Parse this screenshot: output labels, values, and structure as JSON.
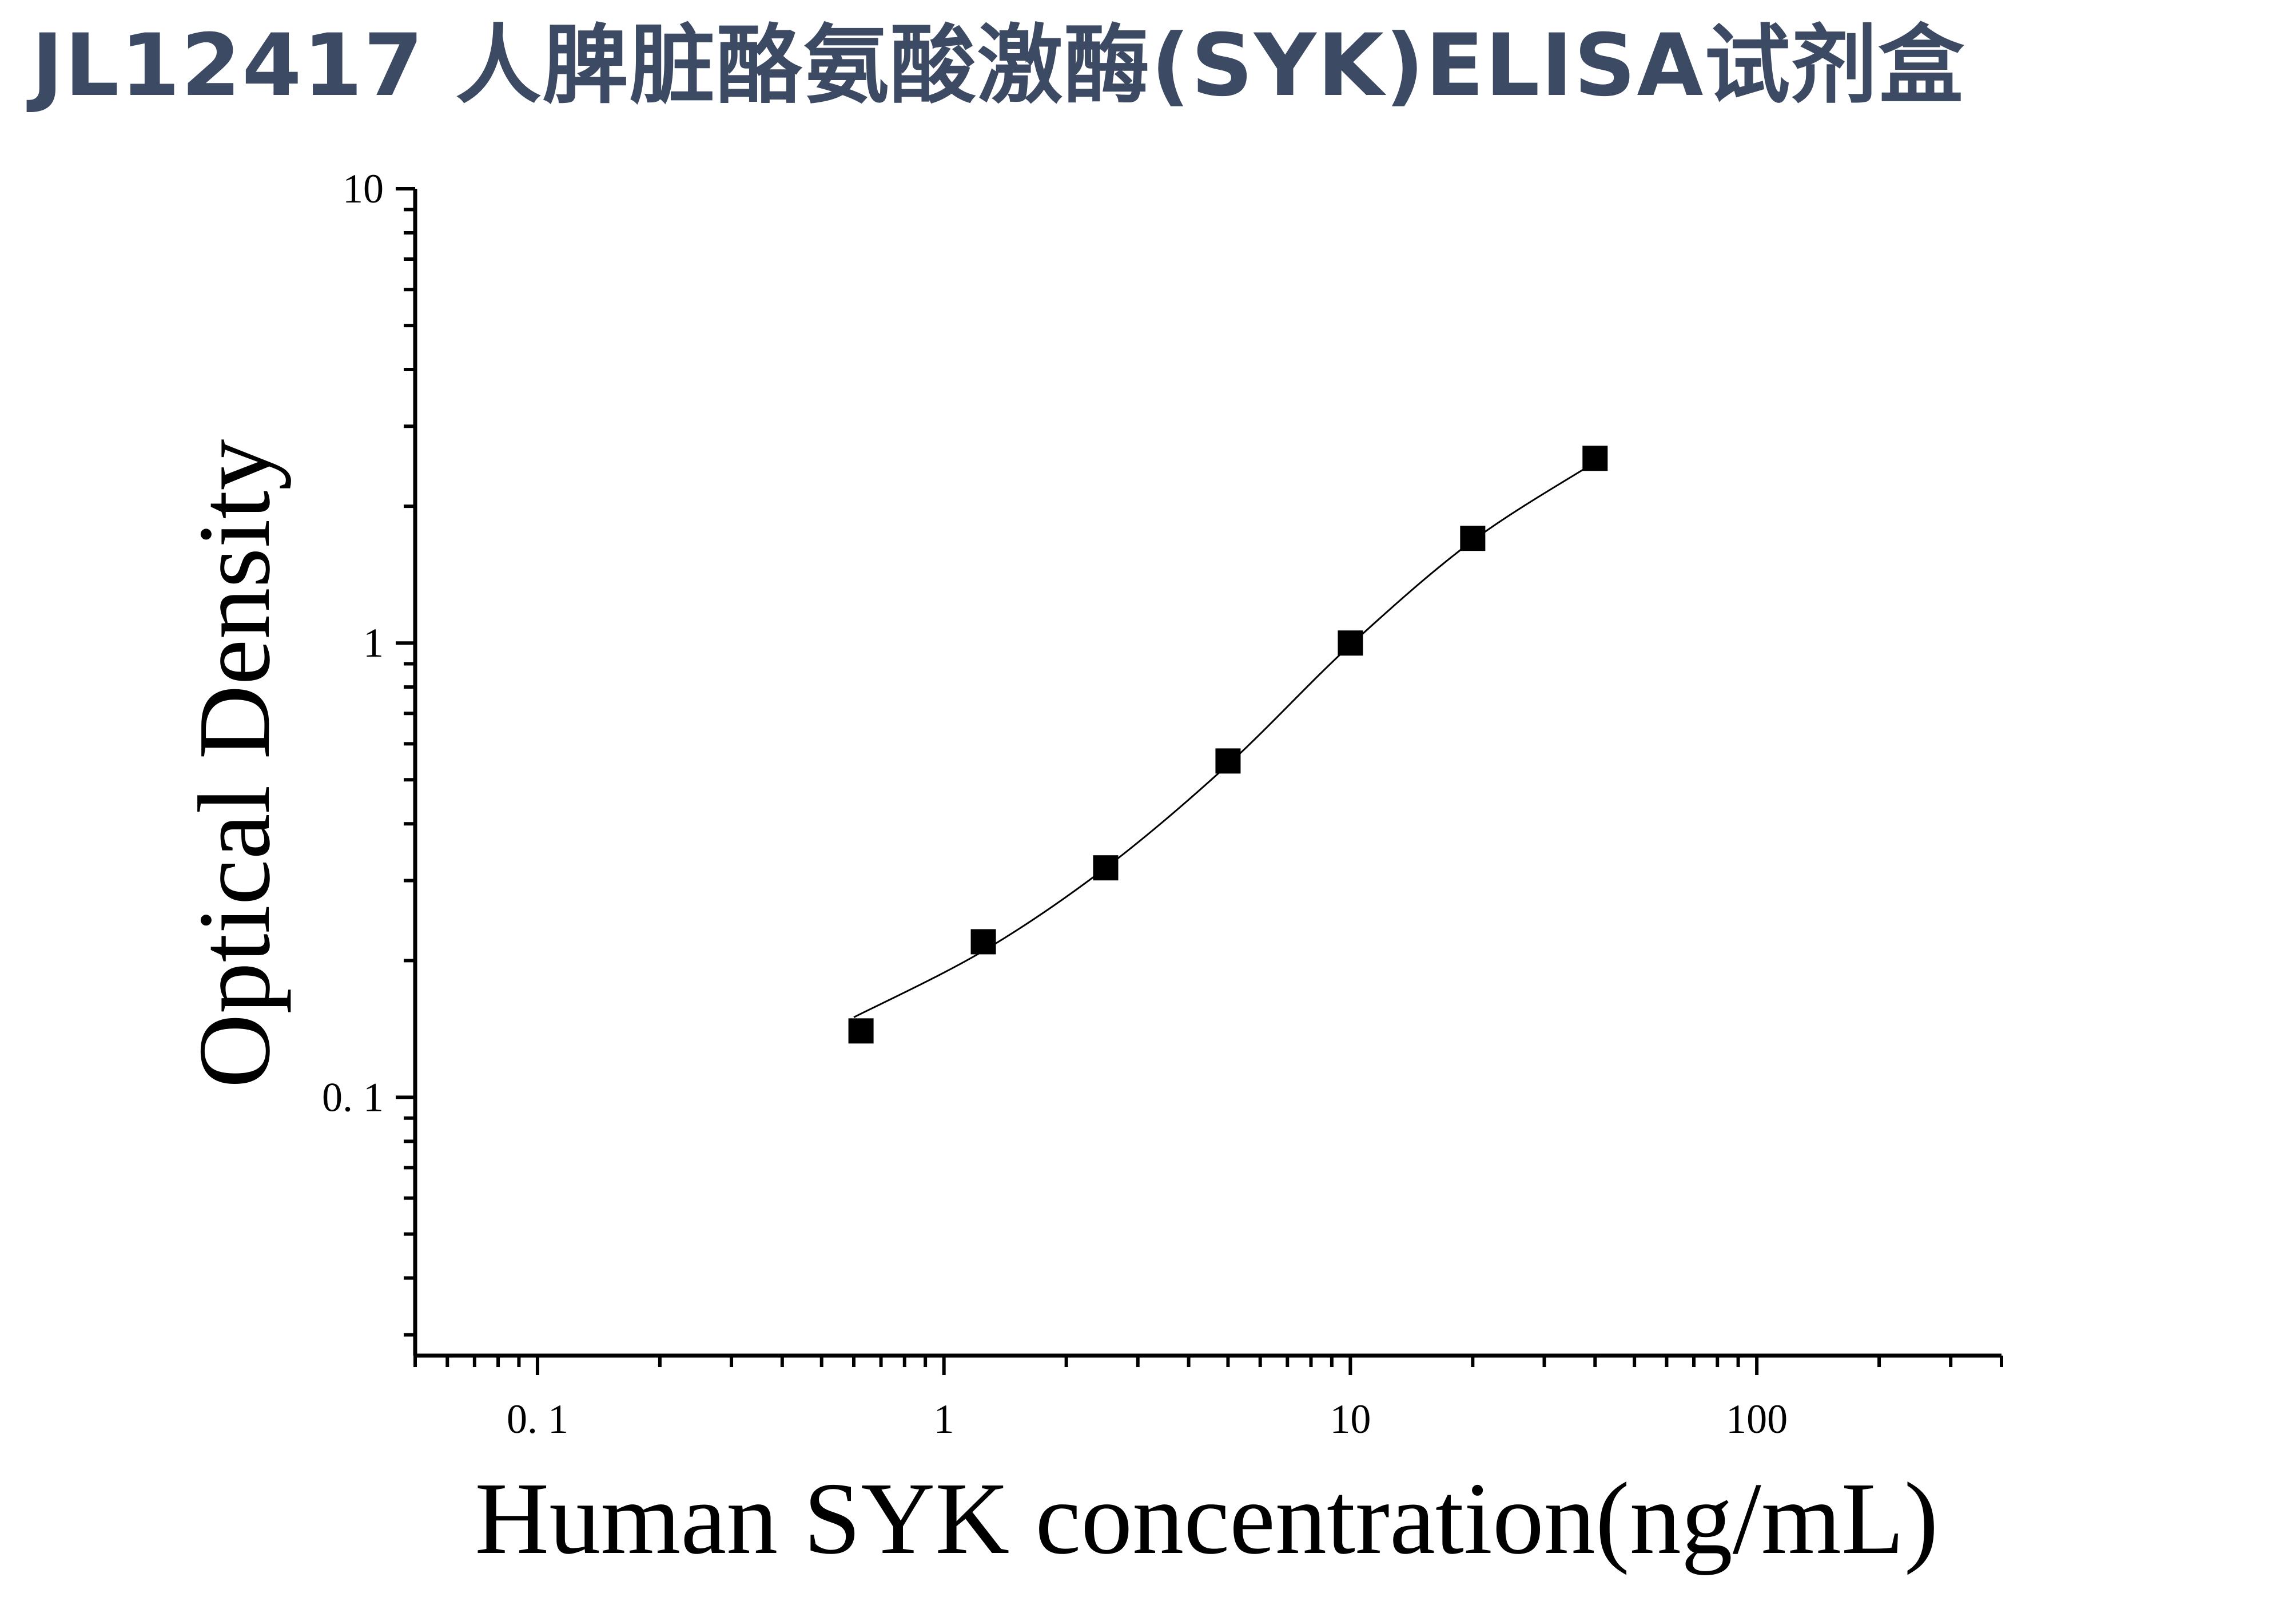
{
  "title": "JL12417 人脾脏酪氨酸激酶(SYK)ELISA试剂盒",
  "chart_data": {
    "type": "scatter",
    "xlabel": "Human SYK concentration(ng/mL)",
    "ylabel": "Optical Density",
    "x_scale": "log",
    "y_scale": "log",
    "xlim": [
      0.05,
      400
    ],
    "ylim": [
      0.027,
      10
    ],
    "x_ticks": [
      {
        "value": 0.1,
        "label": "0. 1"
      },
      {
        "value": 1,
        "label": "1"
      },
      {
        "value": 10,
        "label": "10"
      },
      {
        "value": 100,
        "label": "100"
      }
    ],
    "y_ticks": [
      {
        "value": 0.1,
        "label": "0. 1"
      },
      {
        "value": 1,
        "label": "1"
      },
      {
        "value": 10,
        "label": "10"
      }
    ],
    "series": [
      {
        "marker": "square",
        "color": "#000000",
        "x": [
          0.625,
          1.25,
          2.5,
          5,
          10,
          20,
          40
        ],
        "y": [
          0.14,
          0.22,
          0.32,
          0.55,
          1.0,
          1.7,
          2.55
        ]
      }
    ],
    "fit_curve": {
      "color": "#000000",
      "x": [
        0.6,
        1.25,
        2.5,
        5,
        10,
        20,
        40
      ],
      "y": [
        0.15,
        0.21,
        0.32,
        0.54,
        0.99,
        1.68,
        2.5
      ]
    },
    "grid": false,
    "legend": "none"
  }
}
